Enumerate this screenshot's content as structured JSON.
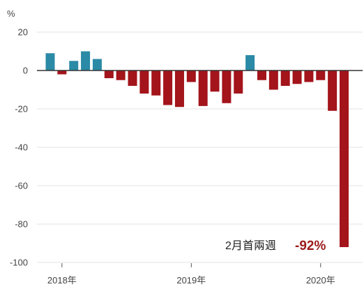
{
  "chart_data": {
    "type": "bar",
    "title": "",
    "xlabel": "",
    "ylabel": "%",
    "ylim": [
      -100,
      20
    ],
    "yticks": [
      20,
      0,
      -20,
      -40,
      -60,
      -80,
      -100
    ],
    "grid": true,
    "legend": "none",
    "x_labels": [
      {
        "text": "2018年",
        "index": 1
      },
      {
        "text": "2019年",
        "index": 12
      },
      {
        "text": "2020年",
        "index": 23
      }
    ],
    "values": [
      9,
      -2,
      5,
      10,
      6,
      -4,
      -5,
      -8,
      -12,
      -13,
      -18,
      -19,
      -6,
      -18.5,
      -11,
      -17,
      -12,
      8,
      -5,
      -10,
      -8,
      -7,
      -6,
      -5,
      -21,
      -92
    ],
    "colors": {
      "positive": "#2b8aa6",
      "negative": "#a3141b",
      "annotation_value": "#9b1c1c"
    },
    "annotation": {
      "label": "2月首兩週",
      "value": "-92%"
    }
  }
}
